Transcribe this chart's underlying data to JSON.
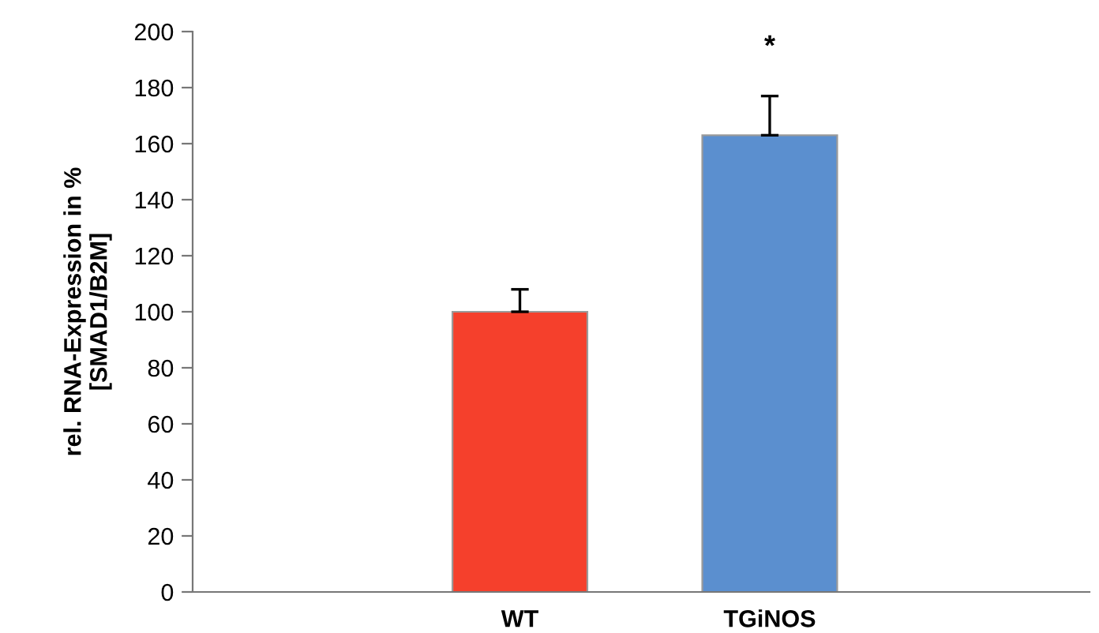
{
  "chart_data": {
    "type": "bar",
    "ylabel": "rel. RNA-Expression in %\n[SMAD1/B2M]",
    "categories": [
      "WT",
      "TGiNOS"
    ],
    "values": [
      100,
      163
    ],
    "colors": [
      "#f5402c",
      "#5b8fcf"
    ],
    "errors": [
      [
        100,
        108
      ],
      [
        163,
        177
      ]
    ],
    "ylim": [
      0,
      200
    ],
    "yticks": [
      0,
      20,
      40,
      60,
      80,
      100,
      120,
      140,
      160,
      180,
      200
    ],
    "grid": false,
    "legend": false,
    "annotations": [
      "*"
    ]
  }
}
